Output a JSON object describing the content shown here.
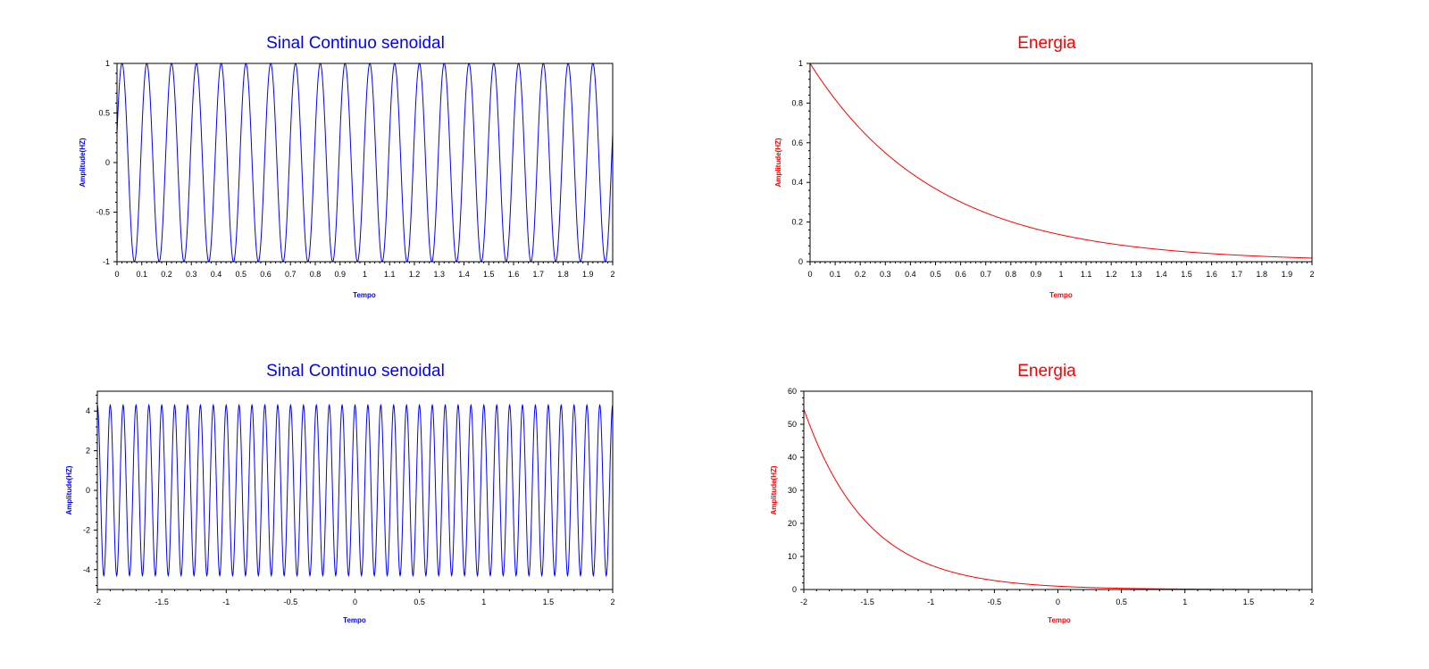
{
  "chart_data": [
    {
      "type": "line",
      "title": "Sinal Continuo senoidal",
      "xlabel": "Tempo",
      "ylabel": "Amplitude(HZ)",
      "color": "#0000ff",
      "xlim": [
        0,
        2
      ],
      "ylim": [
        -1,
        1
      ],
      "xticks": [
        "0",
        "0.1",
        "0.2",
        "0.3",
        "0.4",
        "0.5",
        "0.6",
        "0.7",
        "0.8",
        "0.9",
        "1",
        "1.1",
        "1.2",
        "1.3",
        "1.4",
        "1.5",
        "1.6",
        "1.7",
        "1.8",
        "1.9",
        "2"
      ],
      "yticks": [
        "-1",
        "-0.5",
        "0",
        "0.5",
        "1"
      ],
      "series": [
        {
          "function": "sine",
          "amplitude": 1,
          "frequency_hz": 10,
          "phase_rad": 0.3
        }
      ],
      "grid": false
    },
    {
      "type": "line",
      "title": "Energia",
      "xlabel": "Tempo",
      "ylabel": "Amplitude(HZ)",
      "color": "#ff0000",
      "xlim": [
        0,
        2
      ],
      "ylim": [
        0,
        1
      ],
      "xticks": [
        "0",
        "0.1",
        "0.2",
        "0.3",
        "0.4",
        "0.5",
        "0.6",
        "0.7",
        "0.8",
        "0.9",
        "1",
        "1.1",
        "1.2",
        "1.3",
        "1.4",
        "1.5",
        "1.6",
        "1.7",
        "1.8",
        "1.9",
        "2"
      ],
      "yticks": [
        "0",
        "0.2",
        "0.4",
        "0.6",
        "0.8",
        "1"
      ],
      "series": [
        {
          "function": "exponential",
          "amplitude": 1,
          "decay_rate": 2,
          "x": [
            0,
            0.5,
            1,
            1.5,
            2
          ],
          "y": [
            1,
            0.37,
            0.135,
            0.05,
            0.018
          ]
        }
      ],
      "grid": false
    },
    {
      "type": "line",
      "title": "Sinal Continuo senoidal",
      "xlabel": "Tempo",
      "ylabel": "Amplitude(HZ)",
      "color": "#0000ff",
      "xlim": [
        -2,
        2
      ],
      "ylim": [
        -5,
        5
      ],
      "xticks": [
        "-2",
        "-1.5",
        "-1",
        "-0.5",
        "0",
        "0.5",
        "1",
        "1.5",
        "2"
      ],
      "yticks": [
        "-4",
        "-2",
        "0",
        "2",
        "4"
      ],
      "series": [
        {
          "function": "sine",
          "amplitude": 4.3,
          "frequency_hz": 10,
          "phase_rad": 1.57
        }
      ],
      "grid": false
    },
    {
      "type": "line",
      "title": "Energia",
      "xlabel": "Tempo",
      "ylabel": "Amplitude(HZ)",
      "color": "#ff0000",
      "xlim": [
        -2,
        2
      ],
      "ylim": [
        0,
        60
      ],
      "xticks": [
        "-2",
        "-1.5",
        "-1",
        "-0.5",
        "0",
        "0.5",
        "1",
        "1.5",
        "2"
      ],
      "yticks": [
        "0",
        "10",
        "20",
        "30",
        "40",
        "50",
        "60"
      ],
      "series": [
        {
          "function": "exponential",
          "amplitude": 1,
          "decay_rate": 2,
          "x": [
            -2,
            -1.5,
            -1,
            -0.5,
            0,
            1,
            1.8
          ],
          "y": [
            54.6,
            20.1,
            7.39,
            2.72,
            1,
            0.135,
            0.027
          ]
        }
      ],
      "grid": false
    }
  ]
}
